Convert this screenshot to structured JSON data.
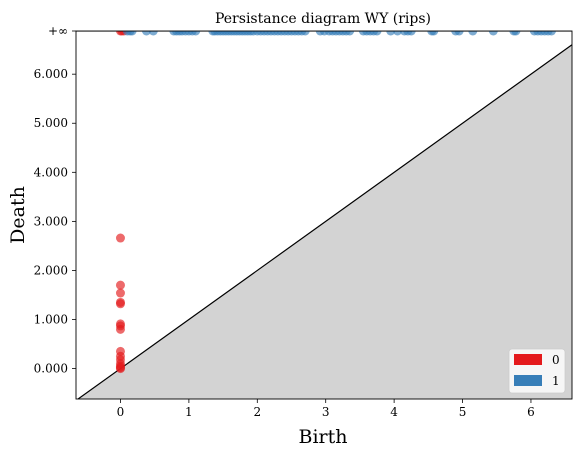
{
  "chart_data": {
    "type": "scatter",
    "title": "Persistance diagram WY (rips)",
    "xlabel": "Birth",
    "ylabel": "Death",
    "xlim": [
      -0.65,
      6.6
    ],
    "ylim": [
      -0.62,
      6.88
    ],
    "x_ticks": [
      0,
      1,
      2,
      3,
      4,
      5,
      6
    ],
    "x_tick_labels": [
      "0",
      "1",
      "2",
      "3",
      "4",
      "5",
      "6"
    ],
    "y_ticks": [
      0,
      1,
      2,
      3,
      4,
      5,
      6
    ],
    "y_tick_labels": [
      "0.000",
      "1.000",
      "2.000",
      "3.000",
      "4.000",
      "5.000",
      "6.000"
    ],
    "infinity_level": 6.88,
    "infinity_label": "+∞",
    "diagonal": true,
    "legend_position": "lower-right",
    "colors": {
      "h0": "#e41a1c",
      "h1": "#377eb8",
      "shade": "#d3d3d3",
      "infinity_line": "#666666"
    },
    "series": [
      {
        "name": "0",
        "points": [
          [
            0,
            2.66
          ],
          [
            0,
            1.7
          ],
          [
            0,
            1.54
          ],
          [
            0,
            1.35
          ],
          [
            0,
            1.32
          ],
          [
            0,
            0.91
          ],
          [
            0,
            0.87
          ],
          [
            0,
            0.8
          ],
          [
            0,
            0.35
          ],
          [
            0,
            0.25
          ],
          [
            0,
            0.18
          ],
          [
            0,
            0.1
          ],
          [
            0,
            0.05
          ],
          [
            0,
            0.02
          ],
          [
            0,
            0.0
          ]
        ],
        "infinite_births": [
          0,
          0.02,
          0.05
        ]
      },
      {
        "name": "1",
        "points": [],
        "infinite_births": [
          0.1,
          0.14,
          0.17,
          0.38,
          0.48,
          0.78,
          0.82,
          0.86,
          0.9,
          0.95,
          1.0,
          1.05,
          1.1,
          1.35,
          1.38,
          1.42,
          1.46,
          1.5,
          1.54,
          1.58,
          1.62,
          1.66,
          1.7,
          1.74,
          1.78,
          1.82,
          1.86,
          1.9,
          1.94,
          2.0,
          2.05,
          2.1,
          2.15,
          2.2,
          2.25,
          2.3,
          2.35,
          2.4,
          2.45,
          2.5,
          2.55,
          2.6,
          2.65,
          2.7,
          2.92,
          2.98,
          3.05,
          3.1,
          3.15,
          3.2,
          3.25,
          3.3,
          3.35,
          3.55,
          3.6,
          3.65,
          3.7,
          3.75,
          3.95,
          4.05,
          4.15,
          4.2,
          4.25,
          4.55,
          4.58,
          4.9,
          4.95,
          5.15,
          5.45,
          5.75,
          5.78,
          6.05,
          6.1,
          6.15,
          6.2,
          6.25,
          6.3
        ]
      }
    ]
  }
}
